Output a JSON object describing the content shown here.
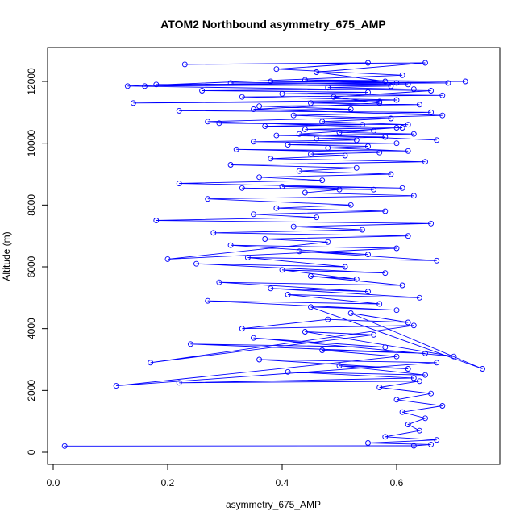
{
  "chart_data": {
    "type": "scatter",
    "title": "ATOM2 Northbound asymmetry_675_AMP",
    "xlabel": "asymmetry_675_AMP",
    "ylabel": "Altitude (m)",
    "xlim": [
      0.0,
      0.75
    ],
    "ylim": [
      0,
      12600
    ],
    "x_ticks": [
      0.0,
      0.2,
      0.4,
      0.6
    ],
    "x_tick_labels": [
      "0.0",
      "0.2",
      "0.4",
      "0.6"
    ],
    "y_ticks": [
      0,
      2000,
      4000,
      6000,
      8000,
      10000,
      12000
    ],
    "y_tick_labels": [
      "0",
      "2000",
      "4000",
      "6000",
      "8000",
      "10000",
      "12000"
    ],
    "series_style": "points connected by lines",
    "grid": false,
    "legend": "none",
    "colors": {
      "series": "#0000ff",
      "axis": "#000000",
      "background": "#ffffff"
    },
    "series": [
      {
        "x": [
          0.02,
          0.63,
          0.66,
          0.55,
          0.67,
          0.58,
          0.64,
          0.62,
          0.65,
          0.61,
          0.68,
          0.6,
          0.66,
          0.57,
          0.64,
          0.22,
          0.63,
          0.41,
          0.65,
          0.5,
          0.62,
          0.36,
          0.67,
          0.11,
          0.6,
          0.47,
          0.65,
          0.24,
          0.58,
          0.35,
          0.7,
          0.44,
          0.56,
          0.17,
          0.63,
          0.33,
          0.48,
          0.62,
          0.52,
          0.75,
          0.45,
          0.6,
          0.27,
          0.57,
          0.41,
          0.64,
          0.38,
          0.55,
          0.29,
          0.61,
          0.45,
          0.53,
          0.4,
          0.58,
          0.25,
          0.51,
          0.34,
          0.67,
          0.43,
          0.55,
          0.31,
          0.6,
          0.2,
          0.48,
          0.37,
          0.62,
          0.28,
          0.54,
          0.42,
          0.66,
          0.18,
          0.46,
          0.35,
          0.58,
          0.39,
          0.52,
          0.27,
          0.63,
          0.44,
          0.5,
          0.33,
          0.56,
          0.4,
          0.61,
          0.22,
          0.47,
          0.36,
          0.59,
          0.43,
          0.53,
          0.31,
          0.65,
          0.38,
          0.51,
          0.45,
          0.57,
          0.32,
          0.62,
          0.48,
          0.55,
          0.41,
          0.6,
          0.35,
          0.53,
          0.46,
          0.58,
          0.39,
          0.63,
          0.5,
          0.56,
          0.44,
          0.61,
          0.37,
          0.54,
          0.29,
          0.62,
          0.47,
          0.59,
          0.42,
          0.66,
          0.22,
          0.52,
          0.36,
          0.64,
          0.45,
          0.57,
          0.14,
          0.6,
          0.33,
          0.68,
          0.4,
          0.55,
          0.26,
          0.63,
          0.48,
          0.59,
          0.18,
          0.69,
          0.38,
          0.6,
          0.44,
          0.72,
          0.16,
          0.62,
          0.31,
          0.58,
          0.46,
          0.65,
          0.23,
          0.55,
          0.39,
          0.61,
          0.13,
          0.66,
          0.49,
          0.57,
          0.35,
          0.68,
          0.27,
          0.6,
          0.43,
          0.67
        ],
        "y": [
          200,
          210,
          250,
          300,
          400,
          500,
          700,
          900,
          1100,
          1300,
          1500,
          1700,
          1900,
          2100,
          2300,
          2250,
          2400,
          2600,
          2500,
          2800,
          2700,
          3000,
          2900,
          2150,
          3100,
          3300,
          3200,
          3500,
          3400,
          3700,
          3100,
          3900,
          3800,
          2900,
          4100,
          4000,
          4300,
          4200,
          4500,
          2700,
          4700,
          4600,
          4900,
          4800,
          5100,
          5000,
          5300,
          5200,
          5500,
          5400,
          5700,
          5600,
          5900,
          5800,
          6100,
          6000,
          6300,
          6200,
          6500,
          6400,
          6700,
          6600,
          6250,
          6800,
          6900,
          7000,
          7100,
          7200,
          7300,
          7400,
          7500,
          7600,
          7700,
          7800,
          7900,
          8000,
          8200,
          8300,
          8400,
          8500,
          8550,
          8500,
          8600,
          8550,
          8700,
          8800,
          8900,
          9000,
          9100,
          9200,
          9300,
          9400,
          9500,
          9600,
          9650,
          9700,
          9800,
          9750,
          9850,
          9900,
          9950,
          10000,
          10050,
          10100,
          10150,
          10200,
          10250,
          10300,
          10350,
          10400,
          10450,
          10500,
          10550,
          10600,
          10650,
          10600,
          10700,
          10800,
          10900,
          11000,
          11050,
          11100,
          11200,
          11250,
          11300,
          11350,
          11300,
          11400,
          11500,
          11550,
          11600,
          11650,
          11700,
          11750,
          11800,
          11850,
          11900,
          11950,
          12000,
          11950,
          12050,
          12000,
          11850,
          11900,
          11950,
          12000,
          12300,
          12600,
          12550,
          12600,
          12400,
          12200,
          11850,
          11700,
          11500,
          11300,
          11100,
          10900,
          10700,
          10500,
          10300,
          10100
        ]
      }
    ]
  }
}
